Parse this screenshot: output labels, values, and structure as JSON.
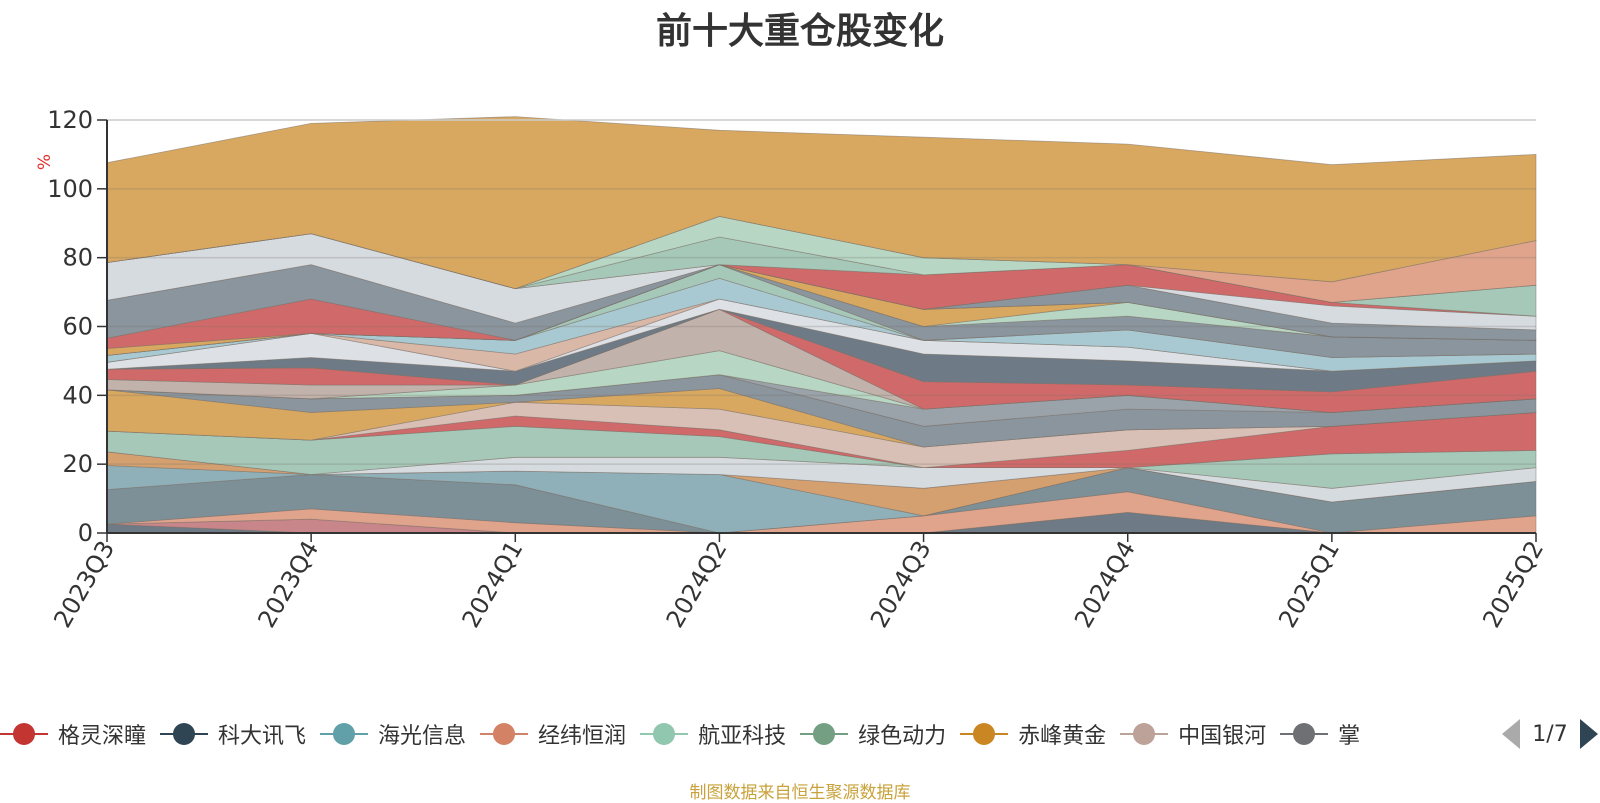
{
  "chart_data": {
    "type": "area",
    "title": "前十大重仓股变化",
    "ylabel": "%",
    "ylim": [
      0,
      120
    ],
    "yticks": [
      0,
      20,
      40,
      60,
      80,
      100,
      120
    ],
    "grid": true,
    "legend_position": "bottom",
    "categories": [
      "2023Q3",
      "2023Q4",
      "2024Q1",
      "2024Q2",
      "2024Q3",
      "2024Q4",
      "2025Q1",
      "2025Q2"
    ],
    "layers": [
      {
        "color": "#6e7b86",
        "values": [
          2.6,
          0,
          0,
          0,
          0,
          6,
          0,
          0
        ]
      },
      {
        "color": "#c8868a",
        "values": [
          0,
          4,
          0,
          0,
          0,
          0,
          0,
          0
        ]
      },
      {
        "color": "#e0a48c",
        "values": [
          0,
          3,
          3,
          0,
          5,
          6,
          0,
          5
        ]
      },
      {
        "color": "#7d8f97",
        "values": [
          10,
          10,
          11,
          0,
          0,
          7,
          9,
          10
        ]
      },
      {
        "color": "#8fb0b8",
        "values": [
          7,
          0,
          4,
          17,
          0,
          0,
          0,
          0
        ]
      },
      {
        "color": "#d4a070",
        "values": [
          4,
          0,
          0,
          0,
          8,
          0,
          0,
          0
        ]
      },
      {
        "color": "#d6dbe0",
        "values": [
          0,
          0,
          4,
          5,
          6,
          0,
          4,
          4
        ]
      },
      {
        "color": "#a6c8b8",
        "values": [
          6,
          10,
          9,
          6,
          0,
          0,
          10,
          5
        ]
      },
      {
        "color": "#d06a6a",
        "values": [
          0,
          0,
          3,
          2,
          0,
          5,
          8,
          11
        ]
      },
      {
        "color": "#d9c0b6",
        "values": [
          0,
          0,
          4,
          6,
          6,
          6,
          0,
          0
        ]
      },
      {
        "color": "#d8a860",
        "values": [
          12,
          8,
          0,
          6,
          0,
          0,
          0,
          0
        ]
      },
      {
        "color": "#8a959e",
        "values": [
          0,
          4,
          2,
          4,
          6,
          6,
          4,
          4
        ]
      },
      {
        "color": "#9aa2aa",
        "values": [
          0,
          0,
          0,
          0,
          5,
          4,
          0,
          0
        ]
      },
      {
        "color": "#b7d6c4",
        "values": [
          0,
          0,
          3,
          7,
          0,
          0,
          0,
          0
        ]
      },
      {
        "color": "#c2b2ac",
        "values": [
          3,
          4,
          0,
          12,
          0,
          0,
          0,
          0
        ]
      },
      {
        "color": "#d06a6a",
        "values": [
          3,
          5,
          0,
          0,
          8,
          3,
          6,
          8
        ]
      },
      {
        "color": "#6e7b86",
        "values": [
          0,
          3,
          4,
          0,
          8,
          7,
          6,
          3
        ]
      },
      {
        "color": "#dde1e6",
        "values": [
          2,
          7,
          0,
          3,
          4,
          4,
          0,
          0
        ]
      },
      {
        "color": "#d9b8a8",
        "values": [
          0,
          0,
          5,
          0,
          0,
          0,
          0,
          0
        ]
      },
      {
        "color": "#a9c9d2",
        "values": [
          2,
          0,
          4,
          6,
          0,
          5,
          4,
          2
        ]
      },
      {
        "color": "#a6c8b8",
        "values": [
          0,
          0,
          0,
          4,
          0,
          0,
          0,
          0
        ]
      },
      {
        "color": "#8a959e",
        "values": [
          0,
          0,
          0,
          0,
          4,
          4,
          6,
          4
        ]
      },
      {
        "color": "#b7d6c4",
        "values": [
          0,
          0,
          0,
          0,
          0,
          4,
          0,
          0
        ]
      },
      {
        "color": "#d8a860",
        "values": [
          2,
          0,
          0,
          0,
          5,
          0,
          0,
          0
        ]
      },
      {
        "color": "#d06a6a",
        "values": [
          3,
          10,
          0,
          0,
          0,
          0,
          0,
          0
        ]
      },
      {
        "color": "#8a959e",
        "values": [
          11,
          10,
          5,
          0,
          0,
          5,
          4,
          3
        ]
      },
      {
        "color": "#d6dbe0",
        "values": [
          11,
          9,
          10,
          0,
          0,
          0,
          5,
          4
        ]
      },
      {
        "color": "#d06a6a",
        "values": [
          0,
          0,
          0,
          0,
          10,
          6,
          1,
          0
        ]
      },
      {
        "color": "#a6c8b8",
        "values": [
          0,
          0,
          0,
          8,
          0,
          0,
          0,
          9
        ]
      },
      {
        "color": "#b7d6c4",
        "values": [
          0,
          0,
          0,
          6,
          5,
          0,
          0,
          0
        ]
      },
      {
        "color": "#e0a48c",
        "values": [
          0,
          0,
          0,
          0,
          0,
          0,
          6,
          13
        ]
      },
      {
        "color": "#d8a860",
        "values": [
          29,
          32,
          50,
          25,
          35,
          35,
          34,
          25
        ]
      }
    ],
    "legend": [
      {
        "name": "格灵深瞳",
        "color": "#c23531"
      },
      {
        "name": "科大讯飞",
        "color": "#2f4554"
      },
      {
        "name": "海光信息",
        "color": "#61a0a8"
      },
      {
        "name": "经纬恒润",
        "color": "#d48265"
      },
      {
        "name": "航亚科技",
        "color": "#91c7ae"
      },
      {
        "name": "绿色动力",
        "color": "#749f83"
      },
      {
        "name": "赤峰黄金",
        "color": "#ca8622"
      },
      {
        "name": "中国银河",
        "color": "#bda29a"
      },
      {
        "name": "掌",
        "color": "#6e7074"
      }
    ],
    "legend_page": "1/7",
    "source_note": "制图数据来自恒生聚源数据库"
  }
}
